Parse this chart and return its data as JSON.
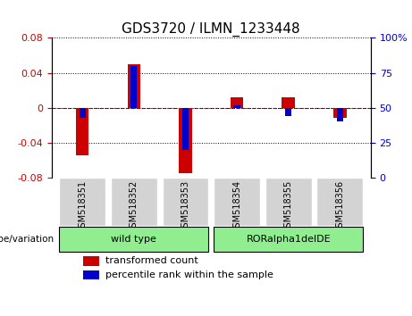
{
  "title": "GDS3720 / ILMN_1233448",
  "samples": [
    "GSM518351",
    "GSM518352",
    "GSM518353",
    "GSM518354",
    "GSM518355",
    "GSM518356"
  ],
  "red_values": [
    -0.055,
    0.05,
    -0.075,
    0.012,
    0.012,
    -0.012
  ],
  "blue_values_pct": [
    43,
    80,
    20,
    52,
    44,
    40
  ],
  "ylim_left": [
    -0.08,
    0.08
  ],
  "ylim_right": [
    0,
    100
  ],
  "yticks_left": [
    -0.08,
    -0.04,
    0,
    0.04,
    0.08
  ],
  "yticks_right": [
    0,
    25,
    50,
    75,
    100
  ],
  "ytick_labels_right": [
    "0",
    "25",
    "50",
    "75",
    "100%"
  ],
  "groups": [
    {
      "label": "wild type",
      "start": 0,
      "end": 3,
      "color": "#90EE90"
    },
    {
      "label": "RORalpha1delDE",
      "start": 3,
      "end": 6,
      "color": "#90EE90"
    }
  ],
  "group_label_prefix": "genotype/variation",
  "legend_red": "transformed count",
  "legend_blue": "percentile rank within the sample",
  "red_color": "#CC0000",
  "blue_color": "#0000CC",
  "bar_width": 0.25,
  "zero_line_color": "#CC0000",
  "grid_color": "#000000",
  "background_plot": "#FFFFFF",
  "background_xtick": "#CCCCCC",
  "group_box_light_green": "#98FB98",
  "group_box_dark_green": "#7CFC00"
}
